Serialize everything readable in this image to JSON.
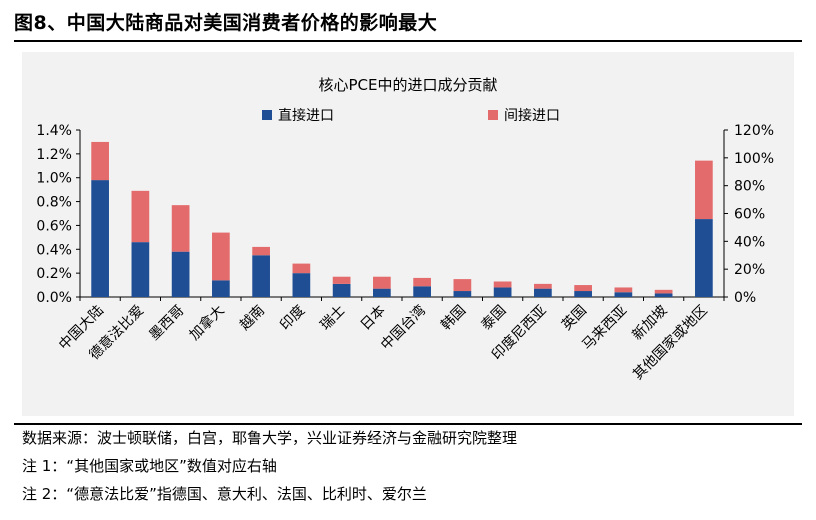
{
  "header": {
    "figure_title": "图8、中国大陆商品对美国消费者价格的影响最大"
  },
  "chart_data": {
    "type": "bar",
    "stacked": true,
    "title": "核心PCE中的进口成分贡献",
    "categories": [
      "中国大陆",
      "德意法比爱",
      "墨西哥",
      "加拿大",
      "越南",
      "印度",
      "瑞士",
      "日本",
      "中国台湾",
      "韩国",
      "泰国",
      "印度尼西亚",
      "英国",
      "马来西亚",
      "新加坡",
      "其他国家或地区"
    ],
    "series": [
      {
        "name": "直接进口",
        "color": "#1f4e94",
        "values": [
          0.98,
          0.46,
          0.38,
          0.14,
          0.35,
          0.2,
          0.11,
          0.07,
          0.09,
          0.05,
          0.08,
          0.07,
          0.05,
          0.04,
          0.03,
          0.56
        ]
      },
      {
        "name": "间接进口",
        "color": "#e46b6b",
        "values": [
          0.32,
          0.43,
          0.39,
          0.4,
          0.07,
          0.08,
          0.06,
          0.1,
          0.07,
          0.1,
          0.05,
          0.04,
          0.05,
          0.04,
          0.03,
          0.42
        ]
      }
    ],
    "secondary_axis_categories": [
      "其他国家或地区"
    ],
    "y_left": {
      "min": 0,
      "max": 1.4,
      "step": 0.2,
      "ticks": [
        "0.0%",
        "0.2%",
        "0.4%",
        "0.6%",
        "0.8%",
        "1.0%",
        "1.2%",
        "1.4%"
      ]
    },
    "y_right": {
      "min": 0,
      "max": 120,
      "step": 20,
      "ticks": [
        "0%",
        "20%",
        "40%",
        "60%",
        "80%",
        "100%",
        "120%"
      ]
    },
    "legend_position": "top-center"
  },
  "notes": {
    "source": "数据来源：波士顿联储，白宫，耶鲁大学，兴业证券经济与金融研究院整理",
    "note1": "注 1：“其他国家或地区”数值对应右轴",
    "note2": "注 2：“德意法比爱”指德国、意大利、法国、比利时、爱尔兰"
  }
}
